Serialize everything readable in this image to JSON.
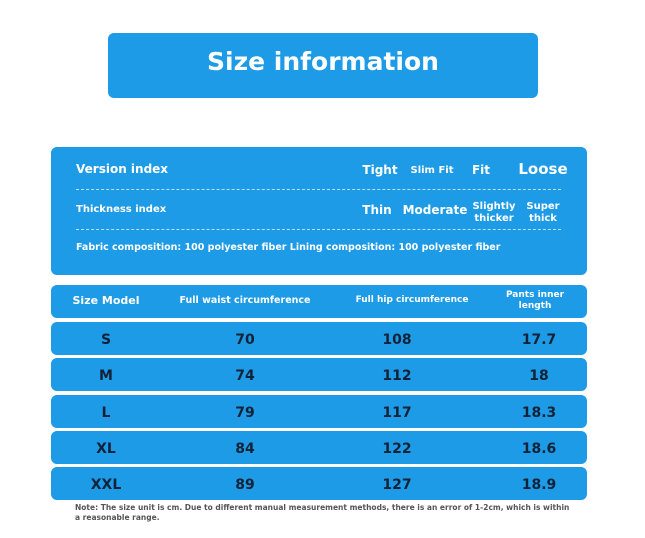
{
  "header": {
    "title": "Size information"
  },
  "info": {
    "version": {
      "label": "Version index",
      "options": [
        "Tight",
        "Slim Fit",
        "Fit",
        "Loose"
      ]
    },
    "thickness": {
      "label": "Thickness index",
      "options": [
        "Thin",
        "Moderate",
        "Slightly thicker",
        "Super thick"
      ]
    },
    "fabric": "Fabric composition: 100 polyester fiber Lining composition: 100 polyester fiber"
  },
  "table": {
    "header": [
      "Size Model",
      "Full waist circumference",
      "Full hip circumference",
      "Pants inner length"
    ],
    "rows": [
      [
        "S",
        70,
        108,
        17.7
      ],
      [
        "M",
        74,
        112,
        18
      ],
      [
        "L",
        79,
        117,
        18.3
      ],
      [
        "XL",
        84,
        122,
        18.6
      ],
      [
        "XXL",
        89,
        127,
        18.9
      ]
    ]
  },
  "note": "Note: The size unit is cm. Due to different manual measurement methods, there is an error of 1-2cm, which is within a reasonable range."
}
